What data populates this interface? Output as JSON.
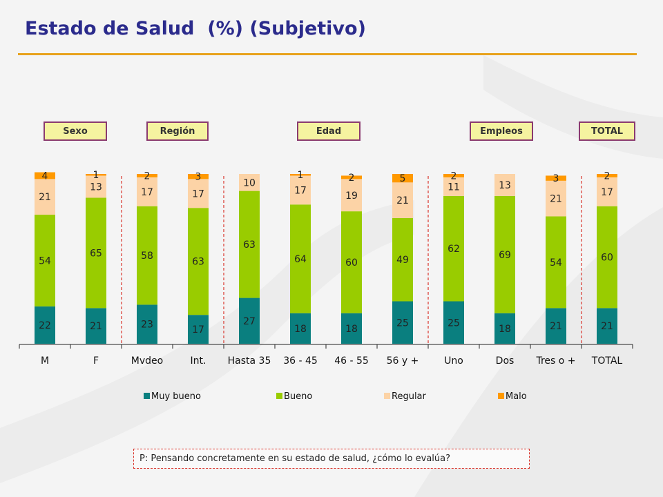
{
  "title": "Estado de Salud  (%) (Subjetivo)",
  "group_tags": [
    "Sexo",
    "Región",
    "Edad",
    "Empleos",
    "TOTAL"
  ],
  "question": "P: Pensando concretamente en su estado de salud, ¿cómo lo evalúa?",
  "colors": {
    "muy_bueno": "#0a7f7f",
    "bueno": "#99cc00",
    "regular": "#fcd3a6",
    "malo": "#ff9900",
    "title": "#2b2b8c",
    "rule": "#e8a21c",
    "separator": "#d9342b"
  },
  "chart_data": {
    "type": "bar",
    "stacked": true,
    "categories": [
      "M",
      "F",
      "Mvdeo",
      "Int.",
      "Hasta 35",
      "36 - 45",
      "46 - 55",
      "56 y +",
      "Uno",
      "Dos",
      "Tres o +",
      "TOTAL"
    ],
    "series": [
      {
        "name": "Muy bueno",
        "values": [
          22,
          21,
          23,
          17,
          27,
          18,
          18,
          25,
          25,
          18,
          21,
          21
        ]
      },
      {
        "name": "Bueno",
        "values": [
          54,
          65,
          58,
          63,
          63,
          64,
          60,
          49,
          62,
          69,
          54,
          60
        ]
      },
      {
        "name": "Regular",
        "values": [
          21,
          13,
          17,
          17,
          10,
          17,
          19,
          21,
          11,
          13,
          21,
          17
        ]
      },
      {
        "name": "Malo",
        "values": [
          4,
          1,
          2,
          3,
          null,
          1,
          2,
          5,
          2,
          null,
          3,
          2
        ]
      }
    ],
    "ylim": [
      0,
      100
    ],
    "legend_position": "bottom",
    "grid": false,
    "group_separators_after": [
      "F",
      "Int.",
      "56 y +",
      "Tres o +"
    ]
  }
}
